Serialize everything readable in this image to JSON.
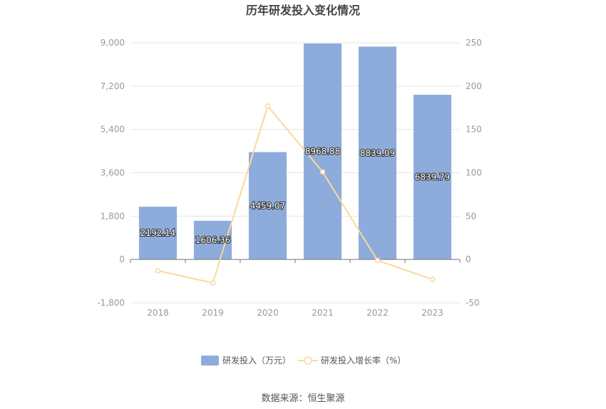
{
  "chart_data": {
    "type": "bar",
    "title": "历年研发投入变化情况",
    "categories": [
      "2018",
      "2019",
      "2020",
      "2021",
      "2022",
      "2023"
    ],
    "series": [
      {
        "name": "研发投入（万元）",
        "kind": "bar",
        "axis": "left",
        "color": "#8eacdb",
        "values": [
          2192.14,
          1606.36,
          4459.07,
          8968.88,
          8839.09,
          6839.79
        ],
        "value_labels": [
          "2192.14",
          "1606.36",
          "4459.07",
          "8968.88",
          "8839.09",
          "6839.79"
        ]
      },
      {
        "name": "研发投入增长率（%）",
        "kind": "line",
        "axis": "right",
        "color": "#fbd89c",
        "values": [
          -13,
          -27,
          177,
          101,
          -1,
          -23
        ]
      }
    ],
    "y_left": {
      "ylim": [
        -1800,
        9000
      ],
      "ticks": [
        -1800,
        0,
        1800,
        3600,
        5400,
        7200,
        9000
      ],
      "tick_labels": [
        "-1,800",
        "0",
        "1,800",
        "3,600",
        "5,400",
        "7,200",
        "9,000"
      ]
    },
    "y_right": {
      "ylim": [
        -50,
        250
      ],
      "ticks": [
        -50,
        0,
        50,
        100,
        150,
        200,
        250
      ],
      "tick_labels": [
        "-50",
        "0",
        "50",
        "100",
        "150",
        "200",
        "250"
      ]
    },
    "grid": true,
    "legend_position": "bottom",
    "source": "数据来源：恒生聚源"
  }
}
